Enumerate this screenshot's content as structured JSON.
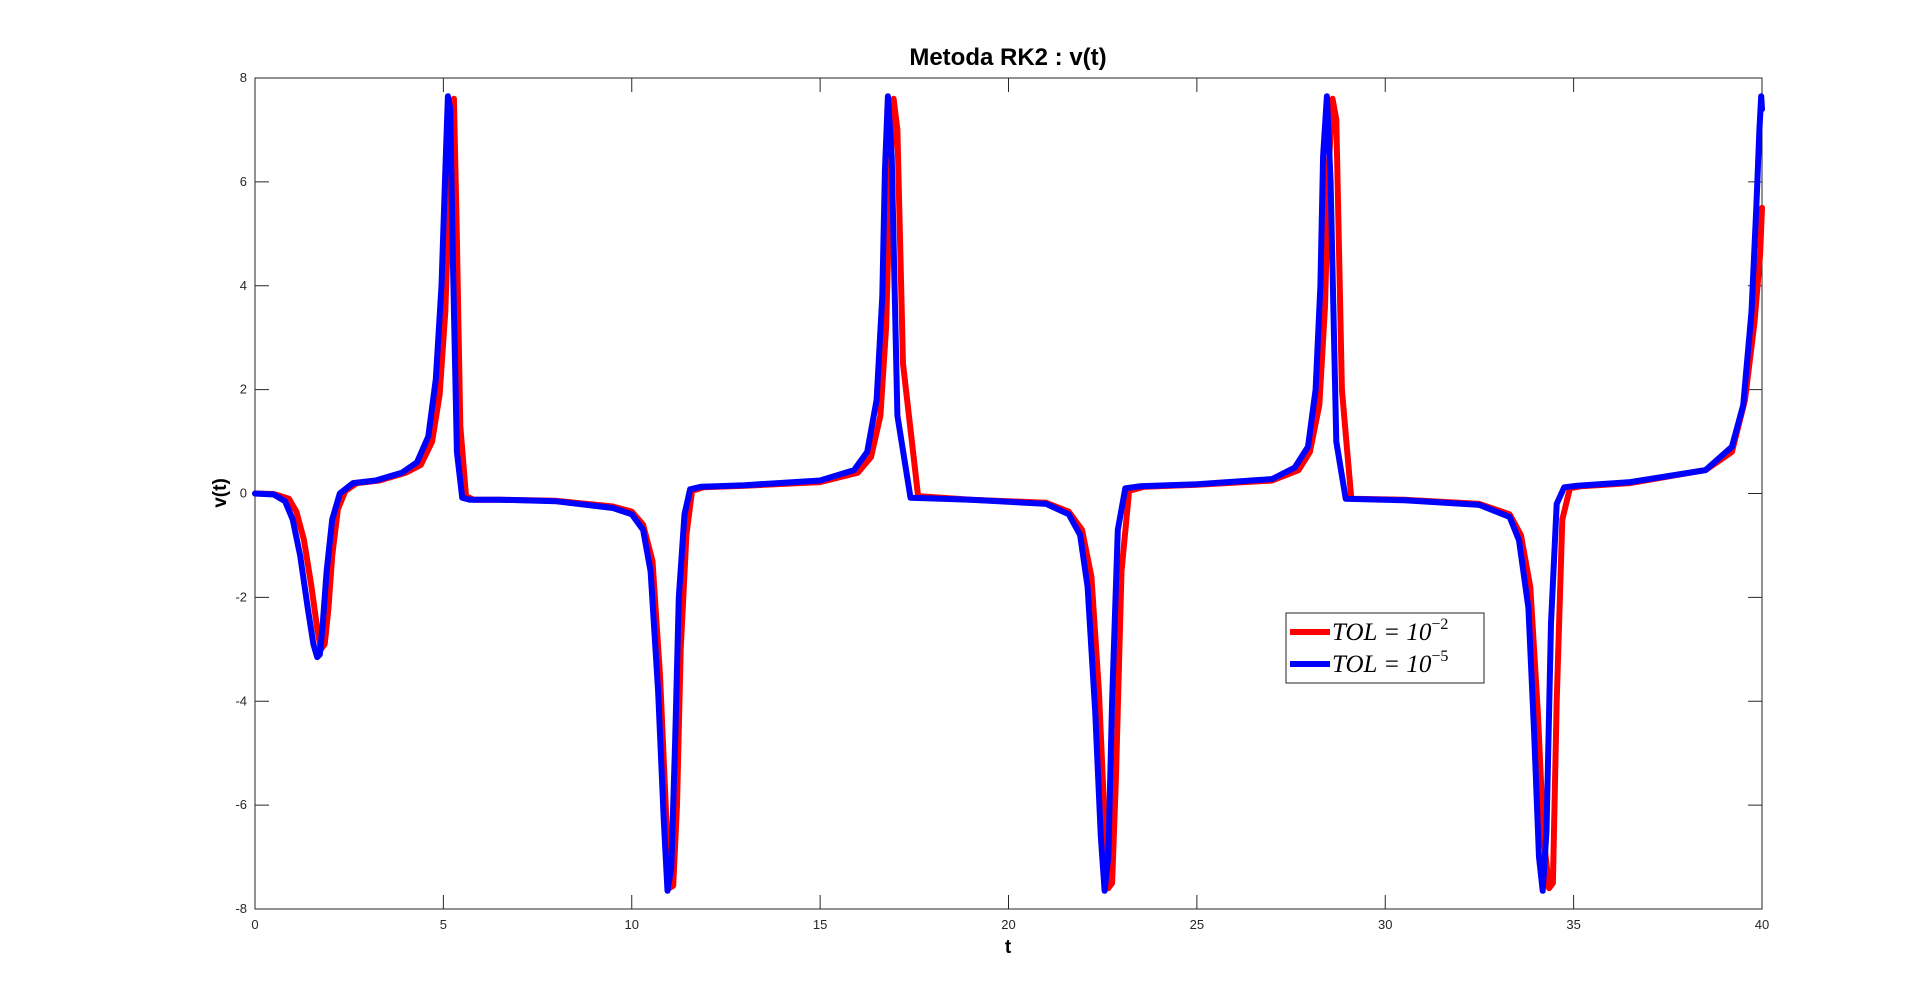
{
  "chart_data": {
    "type": "line",
    "title": "Metoda RK2 : v(t)",
    "xlabel": "t",
    "ylabel": "v(t)",
    "xlim": [
      0,
      40
    ],
    "ylim": [
      -8,
      8
    ],
    "xticks": [
      0,
      5,
      10,
      15,
      20,
      25,
      30,
      35,
      40
    ],
    "yticks": [
      -8,
      -6,
      -4,
      -2,
      0,
      2,
      4,
      6,
      8
    ],
    "grid": false,
    "legend_position": "center-right",
    "series": [
      {
        "name": "TOL = 10^-2",
        "legend_base": "TOL = 10",
        "legend_exp": "−2",
        "color": "#ff0000",
        "x": [
          0,
          0.5,
          0.9,
          1.1,
          1.3,
          1.5,
          1.65,
          1.75,
          1.85,
          1.95,
          2.05,
          2.2,
          2.4,
          2.7,
          3.3,
          4.0,
          4.4,
          4.7,
          4.9,
          5.05,
          5.15,
          5.22,
          5.28,
          5.35,
          5.45,
          5.6,
          5.8,
          6.5,
          8.0,
          9.5,
          10.0,
          10.3,
          10.55,
          10.75,
          10.9,
          11.0,
          11.1,
          11.2,
          11.3,
          11.45,
          11.6,
          11.9,
          13.0,
          15.0,
          16.0,
          16.35,
          16.6,
          16.75,
          16.85,
          16.95,
          17.05,
          17.2,
          17.6,
          19.0,
          21.0,
          21.6,
          21.95,
          22.2,
          22.4,
          22.55,
          22.65,
          22.75,
          22.85,
          23.0,
          23.2,
          23.6,
          25.0,
          27.0,
          27.7,
          28.0,
          28.25,
          28.4,
          28.5,
          28.6,
          28.7,
          28.85,
          29.1,
          30.5,
          32.5,
          33.3,
          33.6,
          33.85,
          34.05,
          34.2,
          34.35,
          34.45,
          34.55,
          34.7,
          34.9,
          35.2,
          36.5,
          38.5,
          39.2,
          39.55,
          39.8,
          39.95,
          40.0
        ],
        "y": [
          0,
          -0.01,
          -0.1,
          -0.35,
          -0.9,
          -1.8,
          -2.6,
          -3.0,
          -2.9,
          -2.2,
          -1.2,
          -0.3,
          0.05,
          0.2,
          0.25,
          0.4,
          0.55,
          1.0,
          1.9,
          3.5,
          5.6,
          7.4,
          7.6,
          5.2,
          1.3,
          -0.05,
          -0.12,
          -0.12,
          -0.14,
          -0.25,
          -0.35,
          -0.6,
          -1.3,
          -3.5,
          -6.0,
          -7.6,
          -7.55,
          -6.0,
          -3.0,
          -0.8,
          0.05,
          0.12,
          0.15,
          0.22,
          0.4,
          0.7,
          1.5,
          3.2,
          5.8,
          7.6,
          7.0,
          2.5,
          -0.05,
          -0.12,
          -0.18,
          -0.35,
          -0.7,
          -1.6,
          -3.8,
          -6.3,
          -7.6,
          -7.5,
          -5.5,
          -1.5,
          0.05,
          0.13,
          0.17,
          0.25,
          0.45,
          0.8,
          1.7,
          3.6,
          6.3,
          7.6,
          7.2,
          2.0,
          -0.1,
          -0.12,
          -0.2,
          -0.4,
          -0.8,
          -1.8,
          -4.2,
          -6.6,
          -7.6,
          -7.5,
          -4.0,
          -0.5,
          0.1,
          0.14,
          0.2,
          0.45,
          0.8,
          1.8,
          3.3,
          4.6,
          5.5
        ]
      },
      {
        "name": "TOL = 10^-5",
        "legend_base": "TOL = 10",
        "legend_exp": "−5",
        "color": "#0000ff",
        "x": [
          0,
          0.5,
          0.8,
          1.0,
          1.2,
          1.4,
          1.55,
          1.65,
          1.72,
          1.8,
          1.9,
          2.05,
          2.25,
          2.6,
          3.2,
          3.9,
          4.3,
          4.6,
          4.8,
          4.95,
          5.05,
          5.12,
          5.18,
          5.26,
          5.36,
          5.5,
          5.7,
          6.5,
          8.0,
          9.5,
          10.0,
          10.3,
          10.5,
          10.7,
          10.85,
          10.95,
          11.05,
          11.15,
          11.25,
          11.4,
          11.55,
          11.85,
          13.0,
          15.0,
          15.9,
          16.25,
          16.5,
          16.65,
          16.72,
          16.8,
          16.9,
          17.05,
          17.4,
          19.0,
          21.0,
          21.6,
          21.9,
          22.1,
          22.3,
          22.45,
          22.55,
          22.65,
          22.75,
          22.9,
          23.1,
          23.5,
          25.0,
          27.0,
          27.6,
          27.95,
          28.15,
          28.28,
          28.35,
          28.45,
          28.55,
          28.7,
          28.95,
          30.5,
          32.5,
          33.3,
          33.55,
          33.8,
          33.95,
          34.08,
          34.18,
          34.28,
          34.4,
          34.55,
          34.75,
          35.1,
          36.5,
          38.5,
          39.2,
          39.5,
          39.72,
          39.85,
          39.93,
          39.98,
          40.0
        ],
        "y": [
          0,
          -0.02,
          -0.15,
          -0.5,
          -1.2,
          -2.2,
          -2.9,
          -3.15,
          -3.1,
          -2.5,
          -1.5,
          -0.5,
          0.0,
          0.2,
          0.25,
          0.4,
          0.6,
          1.1,
          2.2,
          4.0,
          6.2,
          7.65,
          7.4,
          4.2,
          0.8,
          -0.08,
          -0.12,
          -0.12,
          -0.15,
          -0.28,
          -0.4,
          -0.7,
          -1.5,
          -3.8,
          -6.3,
          -7.65,
          -7.2,
          -4.8,
          -2.0,
          -0.4,
          0.08,
          0.13,
          0.16,
          0.25,
          0.45,
          0.8,
          1.8,
          3.8,
          6.2,
          7.65,
          6.5,
          1.5,
          -0.08,
          -0.12,
          -0.2,
          -0.4,
          -0.8,
          -1.8,
          -4.2,
          -6.6,
          -7.65,
          -7.0,
          -4.0,
          -0.7,
          0.1,
          0.14,
          0.18,
          0.28,
          0.5,
          0.9,
          2.0,
          4.0,
          6.5,
          7.65,
          6.0,
          1.0,
          -0.1,
          -0.13,
          -0.22,
          -0.45,
          -0.9,
          -2.2,
          -4.6,
          -7.0,
          -7.65,
          -6.5,
          -2.5,
          -0.2,
          0.12,
          0.15,
          0.22,
          0.45,
          0.9,
          1.7,
          3.5,
          5.5,
          7.0,
          7.65,
          7.4
        ]
      }
    ]
  }
}
